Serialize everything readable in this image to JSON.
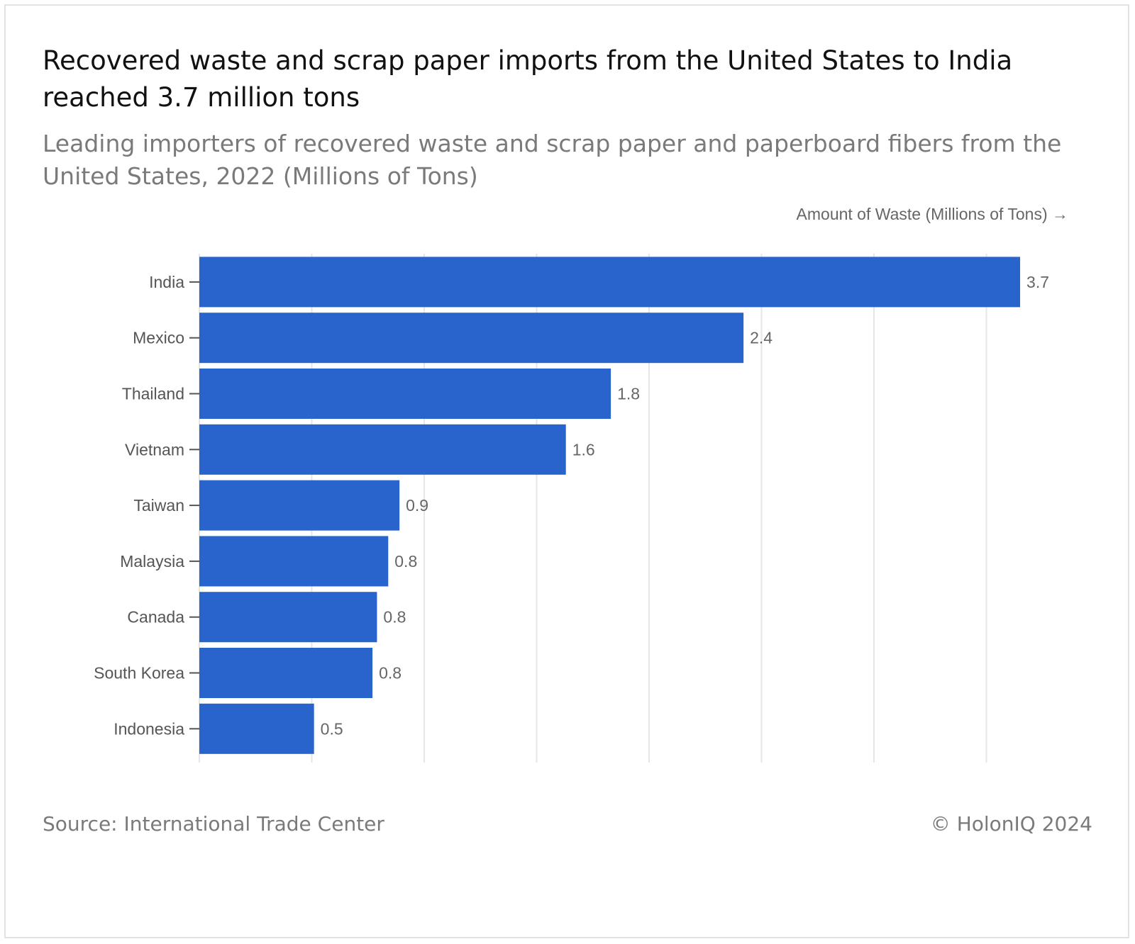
{
  "header": {
    "title": "Recovered waste and scrap paper imports from the United States to India reached 3.7 million tons",
    "subtitle": "Leading importers of recovered waste and scrap paper and paperboard fibers from the United States, 2022 (Millions of Tons)"
  },
  "footer": {
    "source": "Source: International Trade Center",
    "copyright": "© HolonIQ 2024"
  },
  "colors": {
    "bar": "#2964cc",
    "grid": "#e6e6e6",
    "label": "#555555"
  },
  "chart_data": {
    "type": "bar",
    "orientation": "horizontal",
    "title": "",
    "xlabel": "Amount of Waste (Millions of Tons) →",
    "ylabel": "",
    "xlim": [
      0,
      3.5
    ],
    "grid": true,
    "categories": [
      "India",
      "Mexico",
      "Thailand",
      "Vietnam",
      "Taiwan",
      "Malaysia",
      "Canada",
      "South Korea",
      "Indonesia"
    ],
    "values": [
      3.65,
      2.42,
      1.83,
      1.63,
      0.89,
      0.84,
      0.79,
      0.77,
      0.51
    ],
    "data_labels": [
      "3.7",
      "2.4",
      "1.8",
      "1.6",
      "0.9",
      "0.8",
      "0.8",
      "0.8",
      "0.5"
    ]
  }
}
